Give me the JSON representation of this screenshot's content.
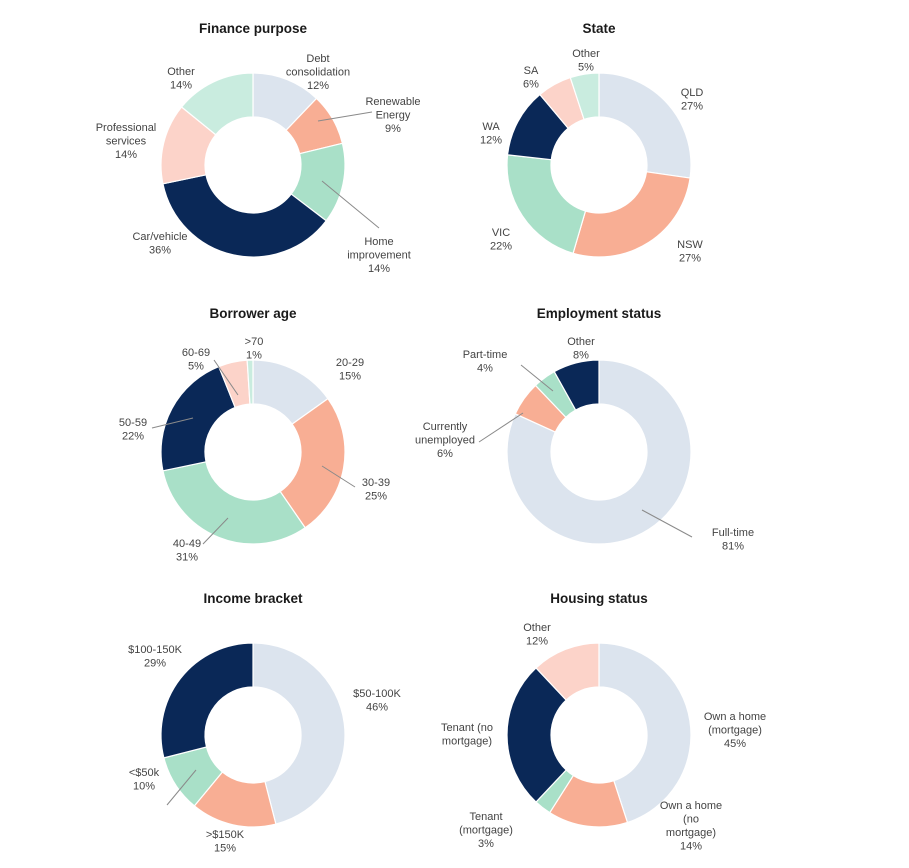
{
  "chart_data": [
    {
      "type": "pie",
      "title": "Finance purpose",
      "slices": [
        {
          "label": [
            "Debt",
            "consolidation"
          ],
          "value": 12,
          "text": "12%",
          "color": "#dce4ee"
        },
        {
          "label": [
            "Renewable",
            "Energy"
          ],
          "value": 9,
          "text": "9%",
          "color": "#f8ae94"
        },
        {
          "label": [
            "Home",
            "improvement"
          ],
          "value": 14,
          "text": "14%",
          "color": "#a9e0c8"
        },
        {
          "label": [
            "Car/vehicle"
          ],
          "value": 36,
          "text": "36%",
          "color": "#0a2857"
        },
        {
          "label": [
            "Professional",
            "services"
          ],
          "value": 14,
          "text": "14%",
          "color": "#fcd3c9"
        },
        {
          "label": [
            "Other"
          ],
          "value": 14,
          "text": "14%",
          "color": "#c9ecdf"
        }
      ]
    },
    {
      "type": "pie",
      "title": "State",
      "slices": [
        {
          "label": [
            "QLD"
          ],
          "value": 27,
          "text": "27%",
          "color": "#dce4ee"
        },
        {
          "label": [
            "NSW"
          ],
          "value": 27,
          "text": "27%",
          "color": "#f8ae94"
        },
        {
          "label": [
            "VIC"
          ],
          "value": 22,
          "text": "22%",
          "color": "#a9e0c8"
        },
        {
          "label": [
            "WA"
          ],
          "value": 12,
          "text": "12%",
          "color": "#0a2857"
        },
        {
          "label": [
            "SA"
          ],
          "value": 6,
          "text": "6%",
          "color": "#fcd3c9"
        },
        {
          "label": [
            "Other"
          ],
          "value": 5,
          "text": "5%",
          "color": "#c9ecdf"
        }
      ]
    },
    {
      "type": "pie",
      "title": "Borrower age",
      "slices": [
        {
          "label": [
            "20-29"
          ],
          "value": 15,
          "text": "15%",
          "color": "#dce4ee"
        },
        {
          "label": [
            "30-39"
          ],
          "value": 25,
          "text": "25%",
          "color": "#f8ae94"
        },
        {
          "label": [
            "40-49"
          ],
          "value": 31,
          "text": "31%",
          "color": "#a9e0c8"
        },
        {
          "label": [
            "50-59"
          ],
          "value": 22,
          "text": "22%",
          "color": "#0a2857"
        },
        {
          "label": [
            "60-69"
          ],
          "value": 5,
          "text": "5%",
          "color": "#fcd3c9"
        },
        {
          "label": [
            ">70"
          ],
          "value": 1,
          "text": "1%",
          "color": "#c9ecdf"
        }
      ]
    },
    {
      "type": "pie",
      "title": "Employment status",
      "slices": [
        {
          "label": [
            "Full-time"
          ],
          "value": 81,
          "text": "81%",
          "color": "#dce4ee"
        },
        {
          "label": [
            "Currently",
            "unemployed"
          ],
          "value": 6,
          "text": "6%",
          "color": "#f8ae94"
        },
        {
          "label": [
            "Part-time"
          ],
          "value": 4,
          "text": "4%",
          "color": "#a9e0c8"
        },
        {
          "label": [
            "Other"
          ],
          "value": 8,
          "text": "8%",
          "color": "#0a2857"
        }
      ]
    },
    {
      "type": "pie",
      "title": "Income bracket",
      "slices": [
        {
          "label": [
            "$50-100K"
          ],
          "value": 46,
          "text": "46%",
          "color": "#dce4ee"
        },
        {
          "label": [
            ">$150K"
          ],
          "value": 15,
          "text": "15%",
          "color": "#f8ae94"
        },
        {
          "label": [
            "<$50k"
          ],
          "value": 10,
          "text": "10%",
          "color": "#a9e0c8"
        },
        {
          "label": [
            "$100-150K"
          ],
          "value": 29,
          "text": "29%",
          "color": "#0a2857"
        }
      ]
    },
    {
      "type": "pie",
      "title": "Housing status",
      "slices": [
        {
          "label": [
            "Own a home",
            "(mortgage)"
          ],
          "value": 45,
          "text": "45%",
          "color": "#dce4ee"
        },
        {
          "label": [
            "Own a home",
            "(no",
            "mortgage)"
          ],
          "value": 14,
          "text": "14%",
          "color": "#f8ae94"
        },
        {
          "label": [
            "Tenant",
            "(mortgage)"
          ],
          "value": 3,
          "text": "3%",
          "color": "#a9e0c8"
        },
        {
          "label": [
            "Tenant (no",
            "mortgage)"
          ],
          "value": 26,
          "text": "",
          "color": "#0a2857"
        },
        {
          "label": [
            "Other"
          ],
          "value": 12,
          "text": "12%",
          "color": "#fcd3c9"
        }
      ]
    }
  ]
}
